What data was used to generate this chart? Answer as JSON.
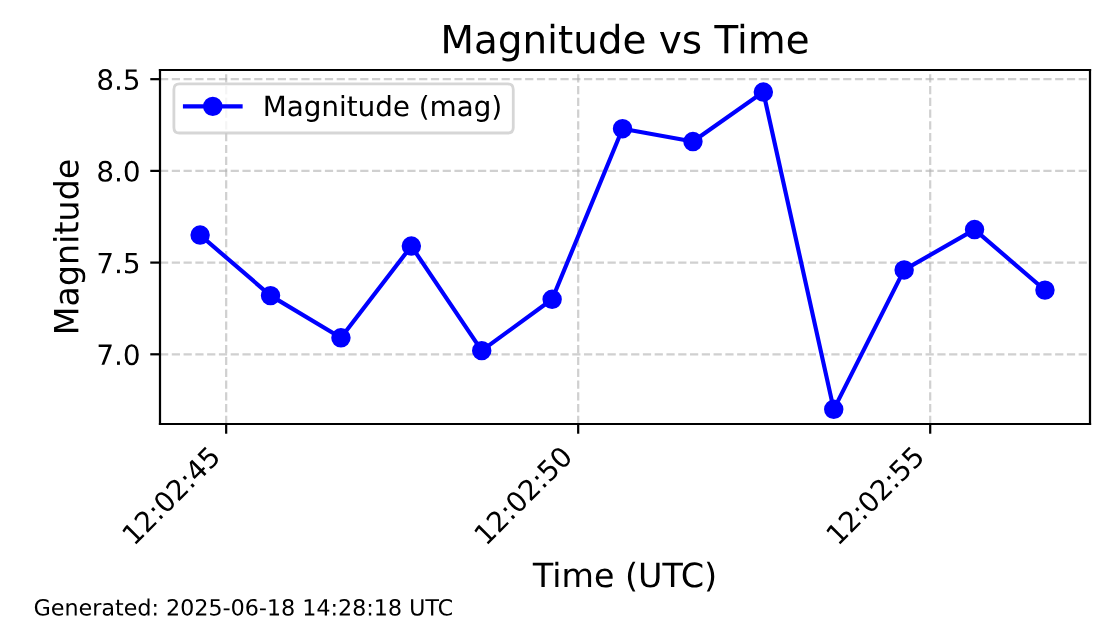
{
  "chart_data": {
    "type": "line",
    "title": "Magnitude vs Time",
    "xlabel": "Time (UTC)",
    "ylabel": "Magnitude",
    "x": [
      12.0457305,
      12.0460083,
      12.0462861,
      12.0465639,
      12.0468416,
      12.0471194,
      12.0473972,
      12.047675,
      12.0479527,
      12.0482305,
      12.0485083,
      12.0487861,
      12.0490639
    ],
    "series": [
      {
        "name": "Magnitude (mag)",
        "color": "#0000ff",
        "values": [
          7.65,
          7.32,
          7.09,
          7.59,
          7.02,
          7.3,
          8.23,
          8.16,
          8.43,
          6.7,
          7.46,
          7.68,
          7.35
        ]
      }
    ],
    "xlim": [
      12.0455722,
      12.0492416
    ],
    "xticks": [
      {
        "value": 12.0458333,
        "label": "12:02:45"
      },
      {
        "value": 12.0472222,
        "label": "12:02:50"
      },
      {
        "value": 12.0486111,
        "label": "12:02:55"
      }
    ],
    "ylim": [
      6.62,
      8.55
    ],
    "yticks": [
      {
        "value": 7,
        "label": "7.0"
      },
      7.5,
      {
        "value": 8,
        "label": "8.0"
      },
      8.5
    ],
    "grid": true,
    "legend": "top left",
    "marker": "circle",
    "line_style": "solid",
    "annotations": [
      "Generated: 2025-06-18 14:28:18 UTC"
    ]
  }
}
